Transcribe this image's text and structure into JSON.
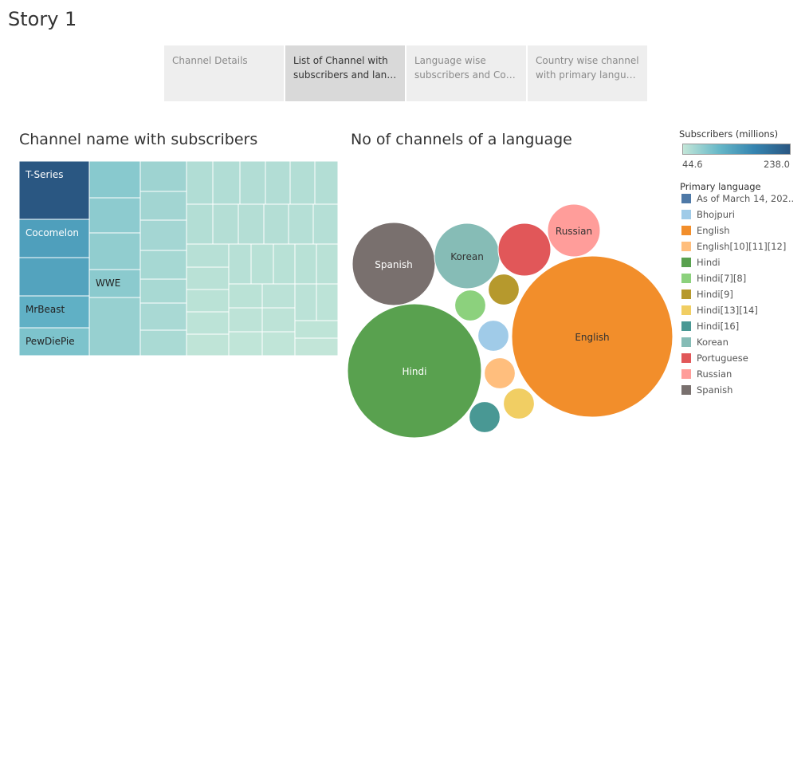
{
  "story_title": "Story 1",
  "tabs": [
    {
      "line1": "Channel Details",
      "line2": "",
      "active": false
    },
    {
      "line1": "List of Channel with",
      "line2": "subscribers and langu..",
      "active": true
    },
    {
      "line1": "Language wise",
      "line2": "subscribers and Coun..",
      "active": false
    },
    {
      "line1": "Country wise channel",
      "line2": "with primary languag..",
      "active": false
    }
  ],
  "chart_data": [
    {
      "type": "treemap",
      "title": "Channel name with subscribers",
      "color_measure": "Subscribers (millions)",
      "color_range": [
        44.6,
        238.0
      ],
      "cells": [
        {
          "label": "T-Series",
          "value": 238.0
        },
        {
          "label": "Cocomelon",
          "value": 160.0
        },
        {
          "label": "",
          "value": 155.0
        },
        {
          "label": "MrBeast",
          "value": 140.0
        },
        {
          "label": "PewDiePie",
          "value": 111.0
        },
        {
          "label": "WWE",
          "value": 98.0
        }
      ]
    },
    {
      "type": "packed-bubble",
      "title": "No of channels of a language",
      "bubbles": [
        {
          "language": "English",
          "label": "English",
          "value": 23,
          "color": "#f28e2b"
        },
        {
          "language": "Hindi",
          "label": "Hindi",
          "value": 16,
          "color": "#59a14f"
        },
        {
          "language": "Spanish",
          "label": "Spanish",
          "value": 6,
          "color": "#79706e"
        },
        {
          "language": "Korean",
          "label": "Korean",
          "value": 4,
          "color": "#86bcb6"
        },
        {
          "language": "Russian",
          "label": "Russian",
          "value": 2,
          "color": "#ff9d9a"
        },
        {
          "language": "Portuguese",
          "label": "",
          "value": 2,
          "color": "#e15759"
        },
        {
          "language": "Hindi[9]",
          "label": "",
          "value": 1,
          "color": "#b6992d"
        },
        {
          "language": "Hindi[7][8]",
          "label": "",
          "value": 1,
          "color": "#8cd17d"
        },
        {
          "language": "Bhojpuri",
          "label": "",
          "value": 1,
          "color": "#a0cbe8"
        },
        {
          "language": "English[10][11][12]",
          "label": "",
          "value": 1,
          "color": "#ffbe7d"
        },
        {
          "language": "Hindi[13][14]",
          "label": "",
          "value": 1,
          "color": "#f1ce63"
        },
        {
          "language": "Hindi[16]",
          "label": "",
          "value": 1,
          "color": "#499894"
        }
      ]
    }
  ],
  "legend": {
    "color_title": "Subscribers (millions)",
    "color_min": "44.6",
    "color_max": "238.0",
    "language_title": "Primary language",
    "items": [
      {
        "label": "As of March 14, 202..",
        "color": "#4e79a7"
      },
      {
        "label": "Bhojpuri",
        "color": "#a0cbe8"
      },
      {
        "label": "English",
        "color": "#f28e2b"
      },
      {
        "label": "English[10][11][12]",
        "color": "#ffbe7d"
      },
      {
        "label": "Hindi",
        "color": "#59a14f"
      },
      {
        "label": "Hindi[7][8]",
        "color": "#8cd17d"
      },
      {
        "label": "Hindi[9]",
        "color": "#b6992d"
      },
      {
        "label": "Hindi[13][14]",
        "color": "#f1ce63"
      },
      {
        "label": "Hindi[16]",
        "color": "#499894"
      },
      {
        "label": "Korean",
        "color": "#86bcb6"
      },
      {
        "label": "Portuguese",
        "color": "#e15759"
      },
      {
        "label": "Russian",
        "color": "#ff9d9a"
      },
      {
        "label": "Spanish",
        "color": "#79706e"
      }
    ]
  }
}
